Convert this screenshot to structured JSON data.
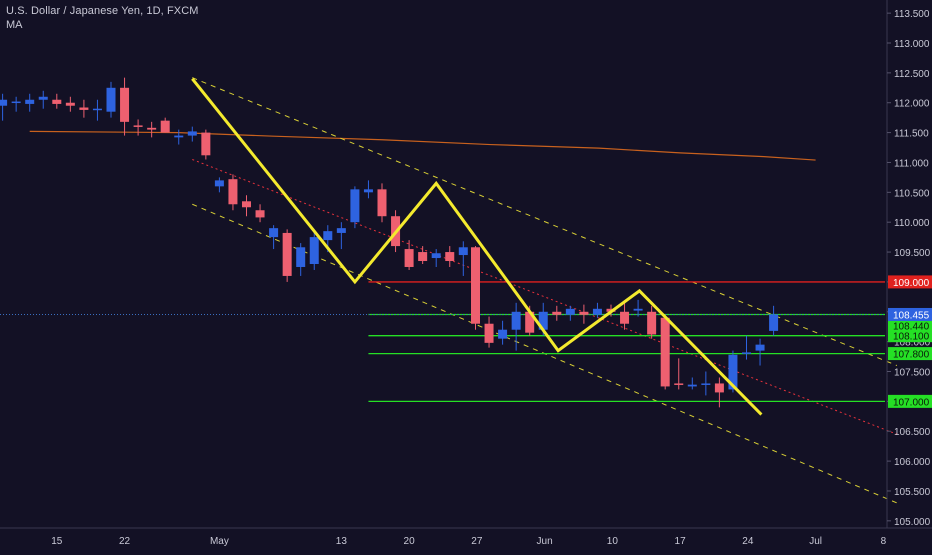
{
  "header": {
    "symbol_title": "U.S. Dollar / Japanese Yen, 1D, FXCM",
    "indicator": "MA"
  },
  "colors": {
    "background": "#131125",
    "up_candle": "#2e63e0",
    "down_candle": "#ee6070",
    "pattern": "#f4ea2e",
    "channel": "#d8cf35",
    "midline": "#e8323c",
    "moving_average": "#c8611e",
    "support_line": "#25e025",
    "resistance_line": "#e0211e",
    "price_line": "#3a6fc0",
    "axis_text": "#c9c9d6"
  },
  "chart_data": {
    "type": "candlestick",
    "title": "U.S. Dollar / Japanese Yen, 1D, FXCM",
    "ylim": [
      104.88,
      113.72
    ],
    "yticks": [
      "113.500",
      "113.000",
      "112.500",
      "112.000",
      "111.500",
      "111.000",
      "110.500",
      "110.000",
      "109.500",
      "109.000",
      "108.500",
      "108.000",
      "107.500",
      "107.000",
      "106.500",
      "106.000",
      "105.500",
      "105.000"
    ],
    "xticks": [
      {
        "label": "15",
        "bar": -4
      },
      {
        "label": "22",
        "bar": 1
      },
      {
        "label": "May",
        "bar": 8
      },
      {
        "label": "13",
        "bar": 17
      },
      {
        "label": "20",
        "bar": 22
      },
      {
        "label": "27",
        "bar": 27
      },
      {
        "label": "Jun",
        "bar": 32
      },
      {
        "label": "10",
        "bar": 37
      },
      {
        "label": "17",
        "bar": 42
      },
      {
        "label": "24",
        "bar": 47
      },
      {
        "label": "Jul",
        "bar": 52
      },
      {
        "label": "8",
        "bar": 57
      }
    ],
    "candles": [
      {
        "o": 111.95,
        "h": 112.15,
        "l": 111.7,
        "c": 112.05
      },
      {
        "o": 112.0,
        "h": 112.1,
        "l": 111.85,
        "c": 112.02
      },
      {
        "o": 111.98,
        "h": 112.15,
        "l": 111.85,
        "c": 112.05
      },
      {
        "o": 112.05,
        "h": 112.2,
        "l": 111.9,
        "c": 112.1
      },
      {
        "o": 112.05,
        "h": 112.15,
        "l": 111.9,
        "c": 111.98
      },
      {
        "o": 112.0,
        "h": 112.1,
        "l": 111.85,
        "c": 111.95
      },
      {
        "o": 111.92,
        "h": 112.05,
        "l": 111.75,
        "c": 111.88
      },
      {
        "o": 111.9,
        "h": 112.05,
        "l": 111.7,
        "c": 111.9
      },
      {
        "o": 111.85,
        "h": 112.35,
        "l": 111.75,
        "c": 112.25
      },
      {
        "o": 112.25,
        "h": 112.42,
        "l": 111.45,
        "c": 111.68
      },
      {
        "o": 111.62,
        "h": 111.72,
        "l": 111.45,
        "c": 111.6
      },
      {
        "o": 111.58,
        "h": 111.68,
        "l": 111.42,
        "c": 111.55
      },
      {
        "o": 111.7,
        "h": 111.75,
        "l": 111.5,
        "c": 111.5
      },
      {
        "o": 111.42,
        "h": 111.55,
        "l": 111.3,
        "c": 111.45
      },
      {
        "o": 111.45,
        "h": 111.6,
        "l": 111.35,
        "c": 111.52
      },
      {
        "o": 111.5,
        "h": 111.55,
        "l": 111.05,
        "c": 111.12
      },
      {
        "o": 110.6,
        "h": 110.75,
        "l": 110.5,
        "c": 110.7
      },
      {
        "o": 110.72,
        "h": 110.8,
        "l": 110.2,
        "c": 110.3
      },
      {
        "o": 110.35,
        "h": 110.45,
        "l": 110.1,
        "c": 110.25
      },
      {
        "o": 110.2,
        "h": 110.3,
        "l": 110.0,
        "c": 110.08
      },
      {
        "o": 109.75,
        "h": 109.95,
        "l": 109.55,
        "c": 109.9
      },
      {
        "o": 109.82,
        "h": 109.88,
        "l": 109.0,
        "c": 109.1
      },
      {
        "o": 109.25,
        "h": 109.65,
        "l": 109.1,
        "c": 109.58
      },
      {
        "o": 109.3,
        "h": 109.85,
        "l": 109.2,
        "c": 109.75
      },
      {
        "o": 109.7,
        "h": 109.95,
        "l": 109.5,
        "c": 109.85
      },
      {
        "o": 109.82,
        "h": 110.0,
        "l": 109.55,
        "c": 109.9
      },
      {
        "o": 110.0,
        "h": 110.6,
        "l": 109.9,
        "c": 110.55
      },
      {
        "o": 110.5,
        "h": 110.7,
        "l": 110.4,
        "c": 110.55
      },
      {
        "o": 110.55,
        "h": 110.65,
        "l": 110.0,
        "c": 110.1
      },
      {
        "o": 110.1,
        "h": 110.2,
        "l": 109.5,
        "c": 109.6
      },
      {
        "o": 109.55,
        "h": 109.7,
        "l": 109.2,
        "c": 109.25
      },
      {
        "o": 109.5,
        "h": 109.6,
        "l": 109.3,
        "c": 109.35
      },
      {
        "o": 109.4,
        "h": 109.55,
        "l": 109.25,
        "c": 109.48
      },
      {
        "o": 109.5,
        "h": 109.6,
        "l": 109.25,
        "c": 109.35
      },
      {
        "o": 109.45,
        "h": 109.68,
        "l": 109.1,
        "c": 109.58
      }
    ],
    "candles_b": [
      {
        "o": 109.58,
        "h": 109.6,
        "l": 108.2,
        "c": 108.3
      },
      {
        "o": 108.3,
        "h": 108.42,
        "l": 107.9,
        "c": 107.98
      },
      {
        "o": 108.05,
        "h": 108.35,
        "l": 107.95,
        "c": 108.2
      },
      {
        "o": 108.2,
        "h": 108.65,
        "l": 107.85,
        "c": 108.5
      },
      {
        "o": 108.5,
        "h": 108.6,
        "l": 108.1,
        "c": 108.15
      },
      {
        "o": 108.2,
        "h": 108.65,
        "l": 108.1,
        "c": 108.5
      },
      {
        "o": 108.5,
        "h": 108.6,
        "l": 108.35,
        "c": 108.45
      },
      {
        "o": 108.45,
        "h": 108.6,
        "l": 108.35,
        "c": 108.55
      },
      {
        "o": 108.5,
        "h": 108.62,
        "l": 108.3,
        "c": 108.45
      },
      {
        "o": 108.45,
        "h": 108.65,
        "l": 108.4,
        "c": 108.55
      },
      {
        "o": 108.55,
        "h": 108.62,
        "l": 108.42,
        "c": 108.5
      },
      {
        "o": 108.5,
        "h": 108.68,
        "l": 108.2,
        "c": 108.3
      },
      {
        "o": 108.52,
        "h": 108.7,
        "l": 108.42,
        "c": 108.55
      },
      {
        "o": 108.5,
        "h": 108.6,
        "l": 108.05,
        "c": 108.12
      },
      {
        "o": 108.4,
        "h": 108.45,
        "l": 107.2,
        "c": 107.25
      },
      {
        "o": 107.3,
        "h": 107.72,
        "l": 107.2,
        "c": 107.28
      },
      {
        "o": 107.25,
        "h": 107.4,
        "l": 107.2,
        "c": 107.28
      },
      {
        "o": 107.28,
        "h": 107.5,
        "l": 107.1,
        "c": 107.3
      },
      {
        "o": 107.3,
        "h": 107.4,
        "l": 106.9,
        "c": 107.15
      },
      {
        "o": 107.2,
        "h": 107.85,
        "l": 107.15,
        "c": 107.78
      },
      {
        "o": 107.8,
        "h": 108.1,
        "l": 107.7,
        "c": 107.82
      },
      {
        "o": 107.85,
        "h": 108.05,
        "l": 107.6,
        "c": 107.95
      },
      {
        "o": 108.18,
        "h": 108.6,
        "l": 108.1,
        "c": 108.455
      }
    ],
    "candles_b_start_bar": 26,
    "moving_average": [
      [
        -6,
        111.52
      ],
      [
        5,
        111.5
      ],
      [
        12,
        111.44
      ],
      [
        20,
        111.38
      ],
      [
        28,
        111.3
      ],
      [
        36,
        111.24
      ],
      [
        42,
        111.16
      ],
      [
        48,
        111.1
      ],
      [
        52,
        111.04
      ]
    ],
    "channel_upper": [
      [
        6,
        112.42
      ],
      [
        58,
        107.6
      ]
    ],
    "channel_lower": [
      [
        6,
        110.3
      ],
      [
        58,
        105.3
      ]
    ],
    "channel_mid": [
      [
        6,
        111.05
      ],
      [
        58,
        106.45
      ]
    ],
    "zigzag": [
      [
        6,
        112.4
      ],
      [
        18,
        109.0
      ],
      [
        24,
        110.65
      ],
      [
        33,
        107.85
      ],
      [
        39,
        108.85
      ],
      [
        48,
        106.78
      ]
    ],
    "horizontal_levels": [
      {
        "value": 109.0,
        "label": "109.000",
        "color": "resistance",
        "start_bar": 19
      },
      {
        "value": 108.455,
        "label": "108.455",
        "color": "support",
        "start_bar": 19
      },
      {
        "value": 108.1,
        "label": "108.100",
        "color": "support",
        "start_bar": 19
      },
      {
        "value": 107.8,
        "label": "107.800",
        "color": "support",
        "start_bar": 19
      },
      {
        "value": 107.0,
        "label": "107.000",
        "color": "support",
        "start_bar": 19
      }
    ],
    "last_price": {
      "value": 108.455,
      "label": "108.455"
    },
    "extra_price_labels": [
      {
        "value": 108.44,
        "label": "108.440"
      }
    ]
  }
}
